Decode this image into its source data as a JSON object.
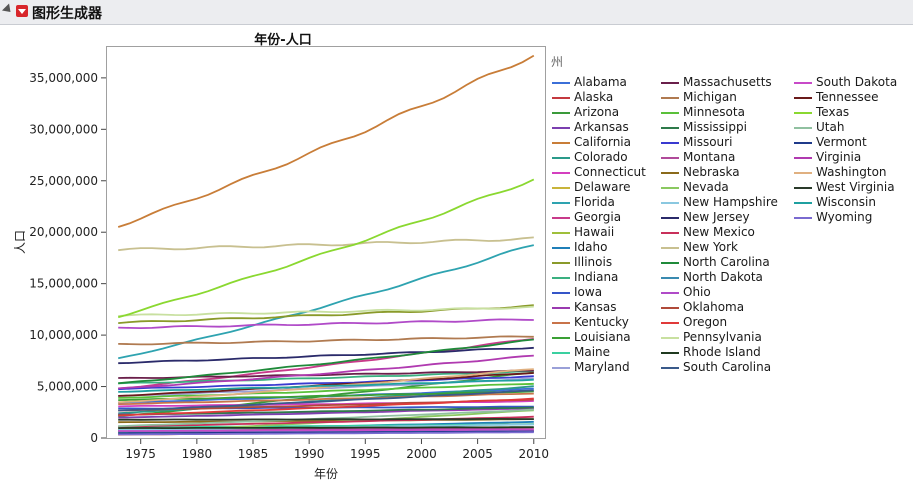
{
  "header": {
    "title": "图形生成器"
  },
  "chart_data": {
    "type": "line",
    "title": "年份-人口",
    "xlabel": "年份",
    "ylabel": "人口",
    "xlim": [
      1972,
      2011
    ],
    "ylim": [
      0,
      38000000
    ],
    "x_ticks": [
      1975,
      1980,
      1985,
      1990,
      1995,
      2000,
      2005,
      2010
    ],
    "y_ticks": [
      0,
      5000000,
      10000000,
      15000000,
      20000000,
      25000000,
      30000000,
      35000000
    ],
    "y_tick_labels": [
      "0",
      "5,000,000",
      "10,000,000",
      "15,000,000",
      "20,000,000",
      "25,000,000",
      "30,000,000",
      "35,000,000"
    ],
    "legend_title": "州",
    "legend_position": "right",
    "series": [
      {
        "name": "Alabama",
        "color": "#3b6fd8",
        "start": 3440000,
        "end": 4780000
      },
      {
        "name": "Alaska",
        "color": "#c4393f",
        "start": 330000,
        "end": 710000
      },
      {
        "name": "Arizona",
        "color": "#3a9a3a",
        "start": 2120000,
        "end": 6390000
      },
      {
        "name": "Arkansas",
        "color": "#7b3fb0",
        "start": 1990000,
        "end": 2920000
      },
      {
        "name": "California",
        "color": "#c87d38",
        "start": 20600000,
        "end": 37250000
      },
      {
        "name": "Colorado",
        "color": "#2a9a8a",
        "start": 2410000,
        "end": 5030000
      },
      {
        "name": "Connecticut",
        "color": "#d43fbf",
        "start": 3080000,
        "end": 3570000
      },
      {
        "name": "Delaware",
        "color": "#c8b43a",
        "start": 570000,
        "end": 900000
      },
      {
        "name": "Florida",
        "color": "#2ea3b0",
        "start": 7700000,
        "end": 18800000
      },
      {
        "name": "Georgia",
        "color": "#c83a8a",
        "start": 4800000,
        "end": 9690000
      },
      {
        "name": "Hawaii",
        "color": "#9fbf3a",
        "start": 830000,
        "end": 1360000
      },
      {
        "name": "Idaho",
        "color": "#1f7fb8",
        "start": 770000,
        "end": 1570000
      },
      {
        "name": "Illinois",
        "color": "#8a9a2a",
        "start": 11200000,
        "end": 12830000
      },
      {
        "name": "Indiana",
        "color": "#3ab080",
        "start": 5300000,
        "end": 6480000
      },
      {
        "name": "Iowa",
        "color": "#3555c8",
        "start": 2860000,
        "end": 3050000
      },
      {
        "name": "Kansas",
        "color": "#9a3ab0",
        "start": 2280000,
        "end": 2850000
      },
      {
        "name": "Kentucky",
        "color": "#c8734a",
        "start": 3300000,
        "end": 4340000
      },
      {
        "name": "Louisiana",
        "color": "#3aa035",
        "start": 3700000,
        "end": 4530000
      },
      {
        "name": "Maine",
        "color": "#3ad0a0",
        "start": 1030000,
        "end": 1330000
      },
      {
        "name": "Maryland",
        "color": "#9aa0d8",
        "start": 4070000,
        "end": 5770000
      },
      {
        "name": "Massachusetts",
        "color": "#6a1f4a",
        "start": 5800000,
        "end": 6550000
      },
      {
        "name": "Michigan",
        "color": "#b07a50",
        "start": 9100000,
        "end": 9880000
      },
      {
        "name": "Minnesota",
        "color": "#5ac03a",
        "start": 3900000,
        "end": 5300000
      },
      {
        "name": "Mississippi",
        "color": "#2e7a4a",
        "start": 2260000,
        "end": 2970000
      },
      {
        "name": "Missouri",
        "color": "#3a3ad0",
        "start": 4770000,
        "end": 5990000
      },
      {
        "name": "Montana",
        "color": "#b04a9a",
        "start": 720000,
        "end": 990000
      },
      {
        "name": "Nebraska",
        "color": "#8a6a1a",
        "start": 1530000,
        "end": 1830000
      },
      {
        "name": "Nevada",
        "color": "#8ac860",
        "start": 520000,
        "end": 2700000
      },
      {
        "name": "New Hampshire",
        "color": "#8ac8e0",
        "start": 790000,
        "end": 1320000
      },
      {
        "name": "New Jersey",
        "color": "#2a2a6a",
        "start": 7300000,
        "end": 8790000
      },
      {
        "name": "New Mexico",
        "color": "#c8305a",
        "start": 1100000,
        "end": 2060000
      },
      {
        "name": "New York",
        "color": "#c8c090",
        "start": 18300000,
        "end": 19380000
      },
      {
        "name": "North Carolina",
        "color": "#1f8a3a",
        "start": 5300000,
        "end": 9540000
      },
      {
        "name": "North Dakota",
        "color": "#3a8ab0",
        "start": 630000,
        "end": 670000
      },
      {
        "name": "Ohio",
        "color": "#b04ac8",
        "start": 10700000,
        "end": 11540000
      },
      {
        "name": "Oklahoma",
        "color": "#b04a3a",
        "start": 2680000,
        "end": 3750000
      },
      {
        "name": "Oregon",
        "color": "#e03a3a",
        "start": 2210000,
        "end": 3830000
      },
      {
        "name": "Pennsylvania",
        "color": "#c8e0a0",
        "start": 11900000,
        "end": 12700000
      },
      {
        "name": "Rhode Island",
        "color": "#1f3a1f",
        "start": 960000,
        "end": 1050000
      },
      {
        "name": "South Carolina",
        "color": "#3a5a8a",
        "start": 2660000,
        "end": 4630000
      },
      {
        "name": "South Dakota",
        "color": "#c84ac8",
        "start": 680000,
        "end": 810000
      },
      {
        "name": "Tennessee",
        "color": "#6a1a1a",
        "start": 4100000,
        "end": 6350000
      },
      {
        "name": "Texas",
        "color": "#8ad830",
        "start": 11800000,
        "end": 25150000
      },
      {
        "name": "Utah",
        "color": "#90c0a0",
        "start": 1150000,
        "end": 2760000
      },
      {
        "name": "Vermont",
        "color": "#1f3a8a",
        "start": 460000,
        "end": 625000
      },
      {
        "name": "Virginia",
        "color": "#b03ab0",
        "start": 4800000,
        "end": 8000000
      },
      {
        "name": "Washington",
        "color": "#e0b080",
        "start": 3450000,
        "end": 6720000
      },
      {
        "name": "West Virginia",
        "color": "#2a3a2a",
        "start": 1780000,
        "end": 1850000
      },
      {
        "name": "Wisconsin",
        "color": "#1fa0a0",
        "start": 4500000,
        "end": 5680000
      },
      {
        "name": "Wyoming",
        "color": "#7a6ad0",
        "start": 350000,
        "end": 560000
      }
    ]
  }
}
